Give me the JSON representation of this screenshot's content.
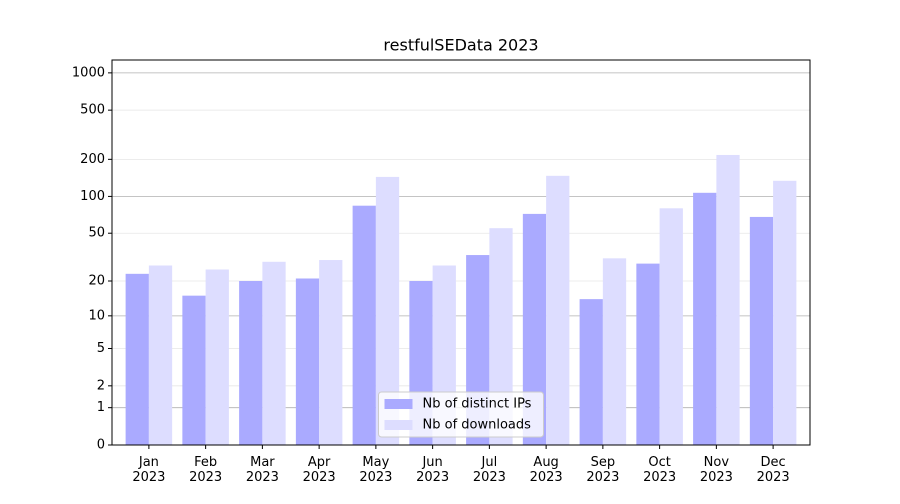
{
  "chart_data": {
    "type": "bar",
    "title": "restfulSEData 2023",
    "categories": [
      "Jan\n2023",
      "Feb\n2023",
      "Mar\n2023",
      "Apr\n2023",
      "May\n2023",
      "Jun\n2023",
      "Jul\n2023",
      "Aug\n2023",
      "Sep\n2023",
      "Oct\n2023",
      "Nov\n2023",
      "Dec\n2023"
    ],
    "series": [
      {
        "name": "Nb of distinct IPs",
        "color": "#aaaaff",
        "values": [
          23,
          15,
          20,
          21,
          84,
          20,
          33,
          72,
          14,
          28,
          107,
          68
        ]
      },
      {
        "name": "Nb of downloads",
        "color": "#ddddff",
        "values": [
          27,
          25,
          29,
          30,
          144,
          27,
          55,
          147,
          31,
          80,
          217,
          134
        ]
      }
    ],
    "yscale": "log1p",
    "ylim": [
      0,
      1270
    ],
    "yticks": [
      0,
      1,
      2,
      5,
      10,
      20,
      50,
      100,
      200,
      500,
      1000
    ],
    "grid": true,
    "legend": "lower center"
  }
}
